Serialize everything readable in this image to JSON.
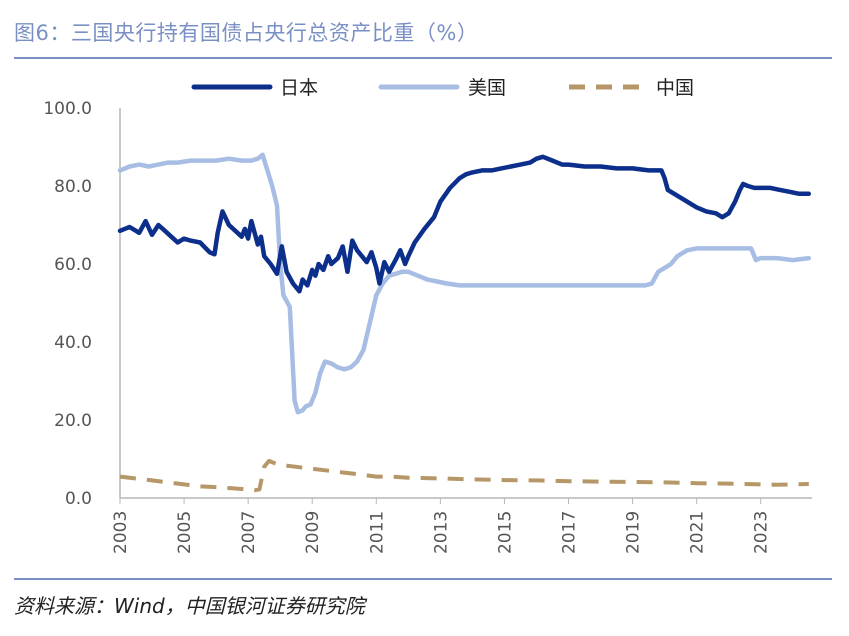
{
  "figure_title": "图6：三国央行持有国债占央行总资产比重（%）",
  "source_note": "资料来源：Wind，中国银河证券研究院",
  "colors": {
    "japan": "#0d2f8c",
    "us": "#a8bde4",
    "china": "#b69868",
    "rule": "#7a8fc4",
    "axis": "#b7b7b7"
  },
  "chart_data": {
    "type": "line",
    "title": "",
    "xlabel": "",
    "ylabel": "",
    "xlim": [
      2003,
      2024.6
    ],
    "ylim": [
      0,
      100
    ],
    "y_ticks": [
      "0.0",
      "20.0",
      "40.0",
      "60.0",
      "80.0",
      "100.0"
    ],
    "x_ticks": [
      "2003",
      "2005",
      "2007",
      "2009",
      "2011",
      "2013",
      "2015",
      "2017",
      "2019",
      "2021",
      "2023"
    ],
    "legend_position": "top-center",
    "grid": false,
    "series": [
      {
        "name": "日本",
        "style": "solid-thick",
        "color": "#0d2f8c",
        "x": [
          2003.0,
          2003.3,
          2003.6,
          2003.8,
          2004.0,
          2004.2,
          2004.4,
          2004.6,
          2004.8,
          2005.0,
          2005.2,
          2005.5,
          2005.8,
          2005.95,
          2006.05,
          2006.2,
          2006.4,
          2006.6,
          2006.8,
          2006.9,
          2007.0,
          2007.1,
          2007.2,
          2007.3,
          2007.4,
          2007.5,
          2007.7,
          2007.9,
          2008.05,
          2008.2,
          2008.4,
          2008.6,
          2008.7,
          2008.85,
          2009.0,
          2009.1,
          2009.2,
          2009.35,
          2009.5,
          2009.6,
          2009.8,
          2009.95,
          2010.1,
          2010.25,
          2010.4,
          2010.55,
          2010.7,
          2010.85,
          2011.0,
          2011.1,
          2011.25,
          2011.4,
          2011.6,
          2011.75,
          2011.9,
          2012.0,
          2012.2,
          2012.5,
          2012.8,
          2013.0,
          2013.3,
          2013.6,
          2013.8,
          2014.0,
          2014.3,
          2014.6,
          2014.9,
          2015.2,
          2015.5,
          2015.8,
          2016.0,
          2016.2,
          2016.5,
          2016.8,
          2017.0,
          2017.5,
          2018.0,
          2018.5,
          2019.0,
          2019.5,
          2019.9,
          2020.0,
          2020.1,
          2020.3,
          2020.5,
          2020.8,
          2021.0,
          2021.3,
          2021.6,
          2021.8,
          2022.0,
          2022.2,
          2022.35,
          2022.45,
          2022.6,
          2022.8,
          2023.0,
          2023.3,
          2023.6,
          2023.9,
          2024.2,
          2024.5
        ],
        "y": [
          68.5,
          69.5,
          68.0,
          71.0,
          67.5,
          70.0,
          68.5,
          67.0,
          65.5,
          66.5,
          66.0,
          65.5,
          63.0,
          62.5,
          68.0,
          73.5,
          70.0,
          68.5,
          67.0,
          69.0,
          66.5,
          71.0,
          68.0,
          65.0,
          67.0,
          62.0,
          60.0,
          57.5,
          64.5,
          58.0,
          55.0,
          53.0,
          56.0,
          54.5,
          58.5,
          57.0,
          60.0,
          58.5,
          62.0,
          60.0,
          61.5,
          64.5,
          58.0,
          66.0,
          63.5,
          62.0,
          60.5,
          63.0,
          59.0,
          55.0,
          60.5,
          58.0,
          61.0,
          63.5,
          60.0,
          62.0,
          65.5,
          69.0,
          72.0,
          76.0,
          79.5,
          82.0,
          83.0,
          83.5,
          84.0,
          84.0,
          84.5,
          85.0,
          85.5,
          86.0,
          87.0,
          87.5,
          86.5,
          85.5,
          85.5,
          85.0,
          85.0,
          84.5,
          84.5,
          84.0,
          84.0,
          82.0,
          79.0,
          78.0,
          77.0,
          75.5,
          74.5,
          73.5,
          73.0,
          72.0,
          73.0,
          76.0,
          79.0,
          80.5,
          80.0,
          79.5,
          79.5,
          79.5,
          79.0,
          78.5,
          78.0,
          78.0
        ]
      },
      {
        "name": "美国",
        "style": "solid-thick",
        "color": "#a8bde4",
        "x": [
          2003.0,
          2003.3,
          2003.6,
          2003.9,
          2004.2,
          2004.5,
          2004.8,
          2005.2,
          2005.6,
          2006.0,
          2006.4,
          2006.8,
          2007.1,
          2007.3,
          2007.45,
          2007.6,
          2007.75,
          2007.9,
          2008.0,
          2008.1,
          2008.3,
          2008.45,
          2008.55,
          2008.7,
          2008.8,
          2008.95,
          2009.1,
          2009.25,
          2009.4,
          2009.6,
          2009.8,
          2010.0,
          2010.2,
          2010.4,
          2010.6,
          2010.8,
          2011.0,
          2011.2,
          2011.4,
          2011.6,
          2011.8,
          2012.0,
          2012.3,
          2012.6,
          2012.9,
          2013.2,
          2013.6,
          2014.0,
          2014.5,
          2015.0,
          2015.5,
          2016.0,
          2016.5,
          2017.0,
          2017.5,
          2018.0,
          2018.5,
          2019.0,
          2019.4,
          2019.6,
          2019.8,
          2020.0,
          2020.2,
          2020.4,
          2020.7,
          2021.0,
          2021.5,
          2022.0,
          2022.5,
          2022.7,
          2022.85,
          2023.0,
          2023.5,
          2024.0,
          2024.5
        ],
        "y": [
          84.0,
          85.0,
          85.5,
          85.0,
          85.5,
          86.0,
          86.0,
          86.5,
          86.5,
          86.5,
          87.0,
          86.5,
          86.5,
          87.0,
          88.0,
          84.0,
          80.0,
          75.0,
          60.0,
          52.0,
          49.0,
          25.0,
          22.0,
          22.5,
          23.5,
          24.0,
          27.0,
          32.0,
          35.0,
          34.5,
          33.5,
          33.0,
          33.5,
          35.0,
          38.0,
          45.0,
          52.0,
          55.0,
          57.0,
          57.5,
          58.0,
          58.0,
          57.0,
          56.0,
          55.5,
          55.0,
          54.5,
          54.5,
          54.5,
          54.5,
          54.5,
          54.5,
          54.5,
          54.5,
          54.5,
          54.5,
          54.5,
          54.5,
          54.5,
          55.0,
          58.0,
          59.0,
          60.0,
          62.0,
          63.5,
          64.0,
          64.0,
          64.0,
          64.0,
          64.0,
          61.0,
          61.5,
          61.5,
          61.0,
          61.5
        ]
      },
      {
        "name": "中国",
        "style": "dashed",
        "color": "#b69868",
        "x": [
          2003.0,
          2003.5,
          2004.0,
          2004.5,
          2005.0,
          2005.5,
          2006.0,
          2006.5,
          2007.0,
          2007.2,
          2007.35,
          2007.5,
          2007.65,
          2007.8,
          2008.0,
          2008.5,
          2009.0,
          2009.5,
          2010.0,
          2010.5,
          2011.0,
          2011.5,
          2012.0,
          2013.0,
          2014.0,
          2015.0,
          2016.0,
          2017.0,
          2018.0,
          2019.0,
          2020.0,
          2021.0,
          2022.0,
          2023.0,
          2023.5,
          2024.0,
          2024.5
        ],
        "y": [
          5.5,
          5.0,
          4.5,
          4.0,
          3.5,
          3.0,
          2.8,
          2.5,
          2.2,
          2.0,
          2.2,
          8.0,
          9.5,
          9.0,
          8.5,
          8.0,
          7.5,
          7.0,
          6.5,
          6.0,
          5.5,
          5.5,
          5.2,
          5.0,
          4.8,
          4.6,
          4.5,
          4.3,
          4.2,
          4.1,
          4.0,
          3.8,
          3.7,
          3.5,
          3.4,
          3.5,
          3.6
        ]
      }
    ]
  }
}
